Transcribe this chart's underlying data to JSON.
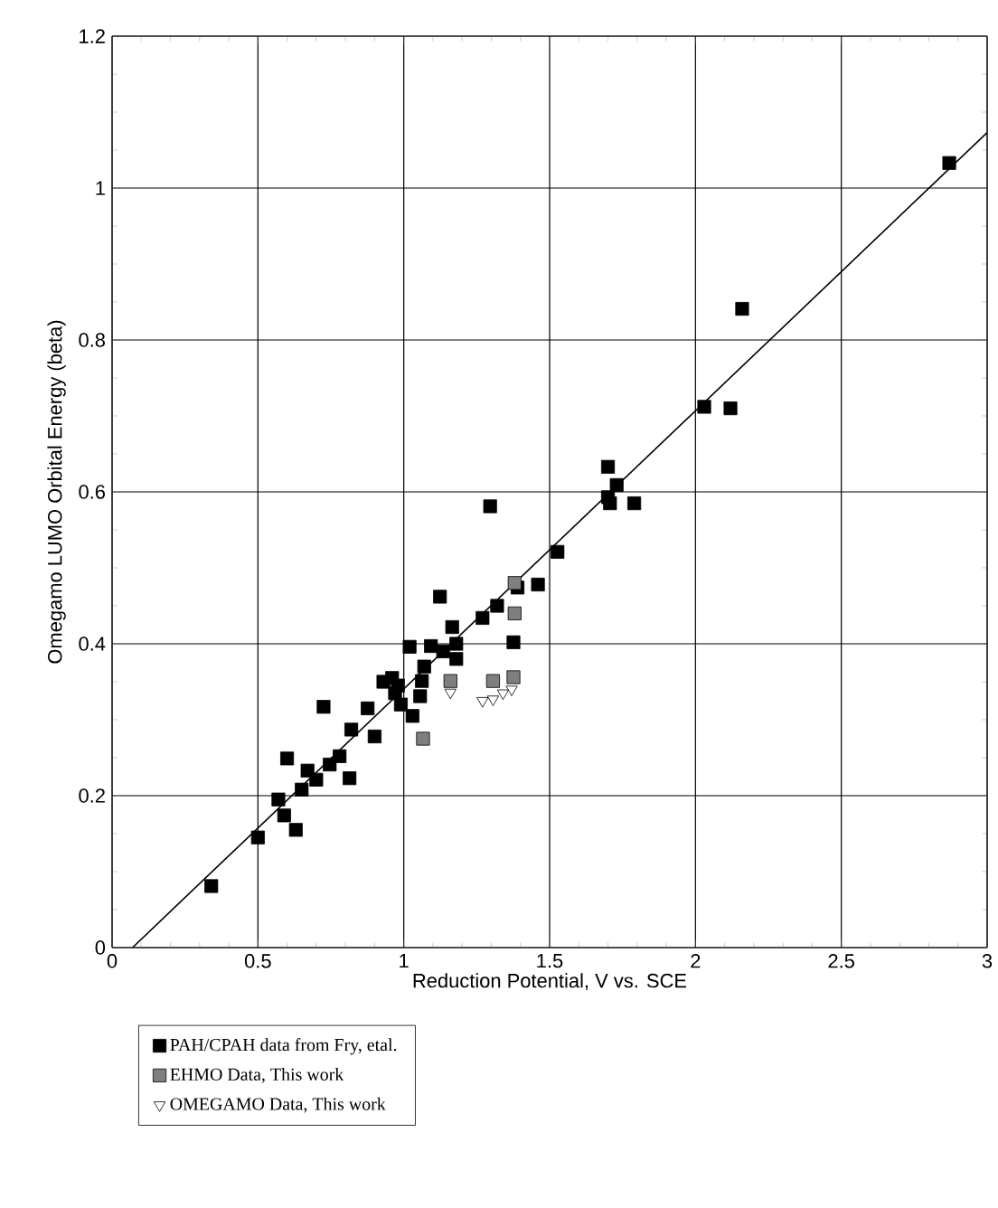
{
  "chart_data": {
    "type": "scatter",
    "xlabel": "Reduction Potential, V vs. SCE",
    "ylabel": "Omegamo LUMO Orbital Energy (beta)",
    "xlim": [
      0,
      3
    ],
    "ylim": [
      0,
      1.2
    ],
    "xticks": [
      0,
      0.5,
      1,
      1.5,
      2,
      2.5,
      3
    ],
    "yticks": [
      0,
      0.2,
      0.4,
      0.6,
      0.8,
      1,
      1.2
    ],
    "grid": true,
    "legend": "bottom",
    "series": [
      {
        "name": "PAH/CPAH data from Fry, etal.",
        "color": "#000000",
        "marker": "square",
        "x": [
          0.34,
          0.5,
          0.57,
          0.59,
          0.63,
          0.6,
          0.65,
          0.67,
          0.7,
          0.725,
          0.746,
          0.78,
          0.814,
          0.82,
          0.876,
          0.9,
          0.93,
          0.96,
          0.98,
          0.97,
          0.99,
          1.03,
          1.02,
          1.056,
          1.062,
          1.07,
          1.093,
          1.124,
          1.135,
          1.166,
          1.18,
          1.18,
          1.27,
          1.32,
          1.296,
          1.376,
          1.39,
          1.46,
          1.527,
          1.7,
          1.7,
          1.73,
          1.707,
          1.79,
          2.03,
          2.12,
          2.16,
          2.87
        ],
        "values": [
          0.081,
          0.145,
          0.195,
          0.174,
          0.155,
          0.249,
          0.208,
          0.233,
          0.221,
          0.317,
          0.241,
          0.252,
          0.223,
          0.287,
          0.315,
          0.278,
          0.35,
          0.355,
          0.345,
          0.335,
          0.32,
          0.305,
          0.396,
          0.331,
          0.351,
          0.37,
          0.397,
          0.462,
          0.39,
          0.422,
          0.4,
          0.38,
          0.434,
          0.45,
          0.581,
          0.402,
          0.474,
          0.478,
          0.521,
          0.593,
          0.633,
          0.609,
          0.585,
          0.585,
          0.712,
          0.71,
          0.841,
          1.033
        ]
      },
      {
        "name": "EHMO Data, This work",
        "color": "#7f7f7f",
        "marker": "square",
        "x": [
          1.066,
          1.16,
          1.306,
          1.376,
          1.38,
          1.38
        ],
        "values": [
          0.275,
          0.351,
          0.351,
          0.356,
          0.44,
          0.48
        ]
      },
      {
        "name": "OMEGAMO Data, This work",
        "color": "#000000",
        "marker": "triangle",
        "x": [
          1.16,
          1.27,
          1.306,
          1.34,
          1.37
        ],
        "values": [
          0.336,
          0.325,
          0.327,
          0.335,
          0.34
        ]
      },
      {
        "color": "#000000",
        "marker": "none",
        "type": "line",
        "x": [
          0.07,
          3.0
        ],
        "values": [
          0,
          1.073
        ]
      }
    ]
  }
}
